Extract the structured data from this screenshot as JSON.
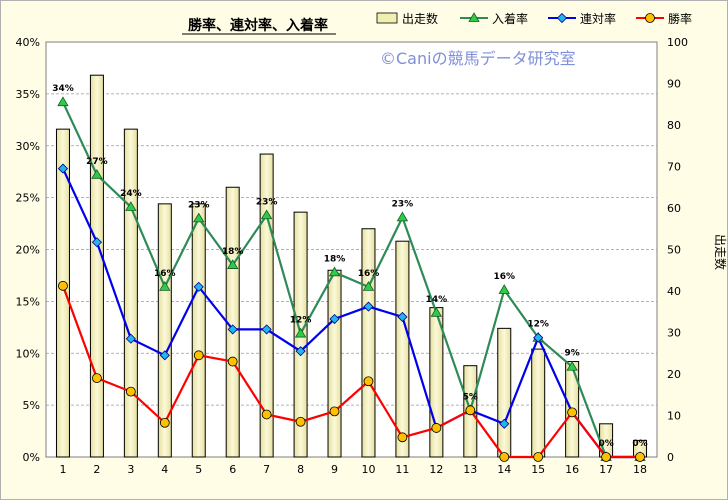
{
  "chart_data": {
    "type": "bar",
    "title": "勝率、連対率、入着率",
    "watermark": "©Caniの競馬データ研究室",
    "categories": [
      "1",
      "2",
      "3",
      "4",
      "5",
      "6",
      "7",
      "8",
      "9",
      "10",
      "11",
      "12",
      "13",
      "14",
      "15",
      "16",
      "17",
      "18"
    ],
    "y_left": {
      "min": 0,
      "max": 40,
      "step": 5,
      "ticks": [
        "0%",
        "5%",
        "10%",
        "15%",
        "20%",
        "25%",
        "30%",
        "35%",
        "40%"
      ]
    },
    "y_right": {
      "label": "出走数",
      "min": 0,
      "max": 100,
      "step": 10,
      "ticks": [
        "0",
        "10",
        "20",
        "30",
        "40",
        "50",
        "60",
        "70",
        "80",
        "90",
        "100"
      ]
    },
    "legend_position": "top-right",
    "gridlines": true,
    "series": [
      {
        "name": "出走数",
        "kind": "bar",
        "axis": "right",
        "color": "#f2efb2",
        "values": [
          79,
          92,
          79,
          61,
          61,
          65,
          73,
          59,
          45,
          55,
          52,
          36,
          22,
          31,
          26,
          23,
          8,
          4
        ]
      },
      {
        "name": "入着率",
        "kind": "line",
        "axis": "left",
        "color": "#2e8b57",
        "marker": "triangle",
        "marker_fill": "#2ecc40",
        "values": [
          34.2,
          27.2,
          24.1,
          16.4,
          23.0,
          18.5,
          23.3,
          11.9,
          17.8,
          16.4,
          23.1,
          13.9,
          4.5,
          16.1,
          11.5,
          8.7,
          0.0,
          0.0
        ],
        "labels": [
          "34%",
          "27%",
          "24%",
          "16%",
          "23%",
          "18%",
          "23%",
          "12%",
          "18%",
          "16%",
          "23%",
          "14%",
          "5%",
          "16%",
          "12%",
          "9%",
          "0%",
          "0%"
        ]
      },
      {
        "name": "連対率",
        "kind": "line",
        "axis": "left",
        "color": "#0000ee",
        "marker": "diamond",
        "marker_fill": "#22b5ee",
        "values": [
          27.8,
          20.7,
          11.4,
          9.8,
          16.4,
          12.3,
          12.3,
          10.2,
          13.3,
          14.5,
          13.5,
          2.8,
          4.5,
          3.2,
          11.5,
          4.3,
          0.0,
          0.0
        ]
      },
      {
        "name": "勝率",
        "kind": "line",
        "axis": "left",
        "color": "#ff0000",
        "marker": "circle",
        "marker_fill": "#ffc000",
        "values": [
          16.5,
          7.6,
          6.3,
          3.3,
          9.8,
          9.2,
          4.1,
          3.4,
          4.4,
          7.3,
          1.9,
          2.8,
          4.5,
          0.0,
          0.0,
          4.3,
          0.0,
          0.0
        ]
      }
    ]
  }
}
